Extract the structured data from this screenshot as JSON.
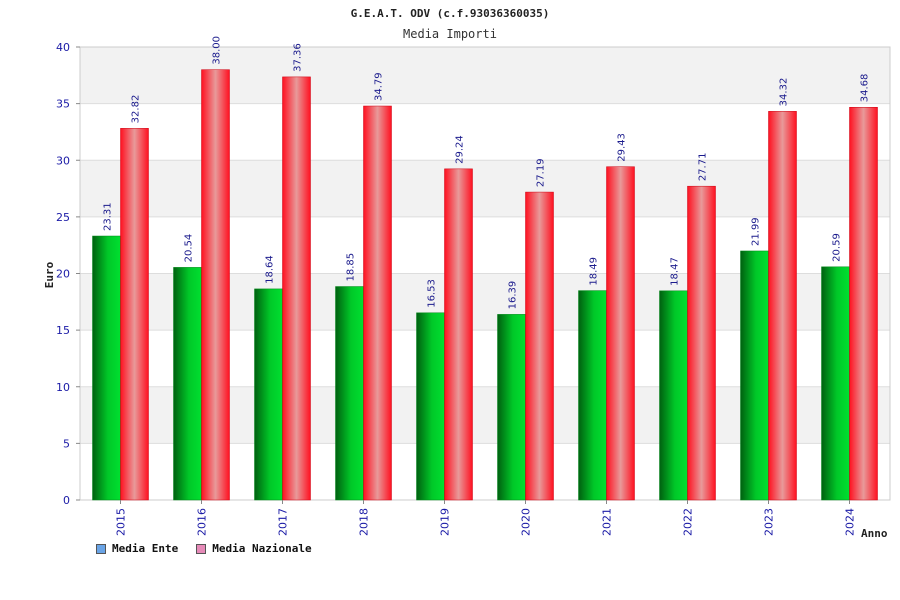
{
  "chart_data": {
    "type": "bar",
    "title": "G.E.A.T. ODV (c.f.93036360035)",
    "subtitle": "Media Importi",
    "xlabel": "Anno",
    "ylabel": "Euro",
    "ylim": [
      0,
      40
    ],
    "yticks": [
      0,
      5,
      10,
      15,
      20,
      25,
      30,
      35,
      40
    ],
    "categories": [
      "2015",
      "2016",
      "2017",
      "2018",
      "2019",
      "2020",
      "2021",
      "2022",
      "2023",
      "2024"
    ],
    "series": [
      {
        "name": "Media Ente",
        "values": [
          23.31,
          20.54,
          18.64,
          18.85,
          16.53,
          16.39,
          18.49,
          18.47,
          21.99,
          20.59
        ],
        "labels": [
          "23.31",
          "20.54",
          "18.64",
          "18.85",
          "16.53",
          "16.39",
          "18.49",
          "18.47",
          "21.99",
          "20.59"
        ],
        "color": "#00b020",
        "legend_color": "#6aa4e6"
      },
      {
        "name": "Media Nazionale",
        "values": [
          32.82,
          38.0,
          37.36,
          34.79,
          29.24,
          27.19,
          29.43,
          27.71,
          34.32,
          34.68
        ],
        "labels": [
          "32.82",
          "38.00",
          "37.36",
          "34.79",
          "29.24",
          "27.19",
          "29.43",
          "27.71",
          "34.32",
          "34.68"
        ],
        "color": "#ee1122",
        "legend_color": "#e68ab8"
      }
    ],
    "grid": true,
    "legend_position": "bottom-left"
  }
}
